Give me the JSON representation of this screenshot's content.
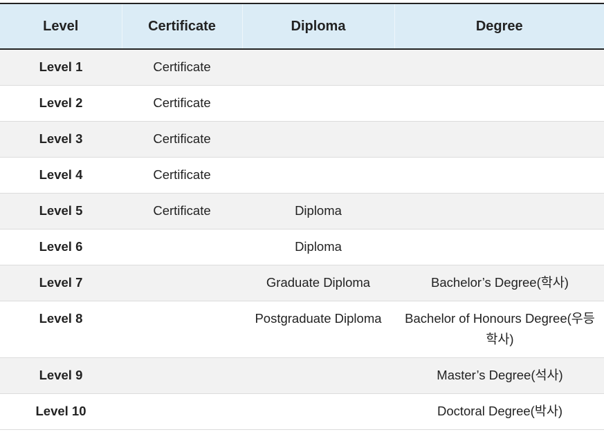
{
  "table": {
    "headers": [
      "Level",
      "Certificate",
      "Diploma",
      "Degree"
    ],
    "rows": [
      {
        "level": "Level 1",
        "certificate": "Certificate",
        "diploma": "",
        "degree": ""
      },
      {
        "level": "Level 2",
        "certificate": "Certificate",
        "diploma": "",
        "degree": ""
      },
      {
        "level": "Level 3",
        "certificate": "Certificate",
        "diploma": "",
        "degree": ""
      },
      {
        "level": "Level 4",
        "certificate": "Certificate",
        "diploma": "",
        "degree": ""
      },
      {
        "level": "Level 5",
        "certificate": "Certificate",
        "diploma": "Diploma",
        "degree": ""
      },
      {
        "level": "Level 6",
        "certificate": "",
        "diploma": "Diploma",
        "degree": ""
      },
      {
        "level": "Level 7",
        "certificate": "",
        "diploma": "Graduate Diploma",
        "degree": "Bachelor’s Degree(학사)"
      },
      {
        "level": "Level 8",
        "certificate": "",
        "diploma": "Postgraduate Diploma",
        "degree": "Bachelor of Honours Degree(우등 학사)"
      },
      {
        "level": "Level 9",
        "certificate": "",
        "diploma": "",
        "degree": "Master’s Degree(석사)"
      },
      {
        "level": "Level 10",
        "certificate": "",
        "diploma": "",
        "degree": "Doctoral Degree(박사)"
      }
    ]
  },
  "colors": {
    "header_bg": "#dbecf6",
    "stripe_bg": "#f2f2f2",
    "rule": "#222222"
  }
}
